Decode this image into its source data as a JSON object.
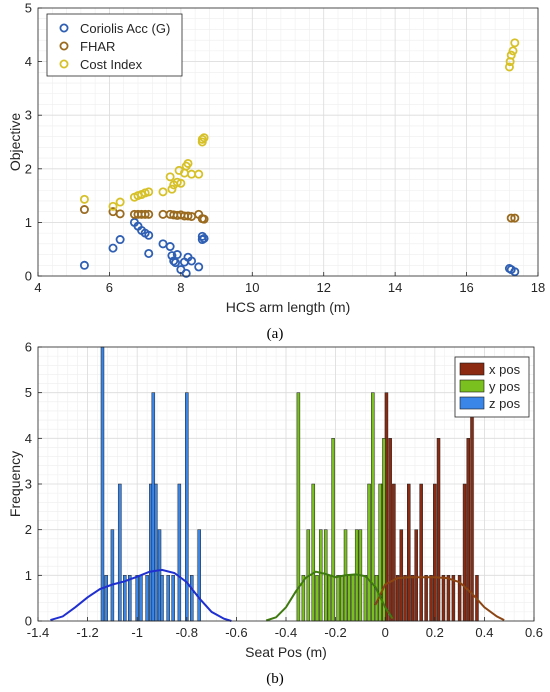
{
  "chart_data": [
    {
      "id": "a",
      "type": "scatter",
      "caption": "(a)",
      "xlabel": "HCS arm length (m)",
      "ylabel": "Objective",
      "xlim": [
        4,
        18
      ],
      "ylim": [
        0,
        5
      ],
      "xticks": [
        4,
        6,
        8,
        10,
        12,
        14,
        16,
        18
      ],
      "yticks": [
        0,
        1,
        2,
        3,
        4,
        5
      ],
      "grid": true,
      "legend_position": "top-left",
      "series": [
        {
          "name": "Coriolis Acc (G)",
          "color": "#2f5fb3",
          "points": [
            [
              5.3,
              0.2
            ],
            [
              6.1,
              0.52
            ],
            [
              6.3,
              0.68
            ],
            [
              6.7,
              1.0
            ],
            [
              6.8,
              0.93
            ],
            [
              6.9,
              0.85
            ],
            [
              7.0,
              0.8
            ],
            [
              7.1,
              0.76
            ],
            [
              7.1,
              0.42
            ],
            [
              7.5,
              0.6
            ],
            [
              7.7,
              0.55
            ],
            [
              7.75,
              0.38
            ],
            [
              7.8,
              0.28
            ],
            [
              7.85,
              0.25
            ],
            [
              7.9,
              0.4
            ],
            [
              8.0,
              0.12
            ],
            [
              8.1,
              0.26
            ],
            [
              8.15,
              0.05
            ],
            [
              8.2,
              0.35
            ],
            [
              8.3,
              0.28
            ],
            [
              8.5,
              0.17
            ],
            [
              8.6,
              0.68
            ],
            [
              8.6,
              0.74
            ],
            [
              8.65,
              0.7
            ],
            [
              17.2,
              0.14
            ],
            [
              17.25,
              0.12
            ],
            [
              17.35,
              0.08
            ]
          ]
        },
        {
          "name": "FHAR",
          "color": "#9a6a1f",
          "points": [
            [
              5.3,
              1.24
            ],
            [
              6.1,
              1.2
            ],
            [
              6.3,
              1.16
            ],
            [
              6.7,
              1.15
            ],
            [
              6.8,
              1.15
            ],
            [
              6.9,
              1.15
            ],
            [
              7.0,
              1.15
            ],
            [
              7.1,
              1.15
            ],
            [
              7.5,
              1.15
            ],
            [
              7.7,
              1.15
            ],
            [
              7.8,
              1.14
            ],
            [
              7.9,
              1.13
            ],
            [
              8.0,
              1.14
            ],
            [
              8.1,
              1.12
            ],
            [
              8.2,
              1.12
            ],
            [
              8.3,
              1.11
            ],
            [
              8.5,
              1.15
            ],
            [
              8.6,
              1.07
            ],
            [
              8.65,
              1.06
            ],
            [
              17.25,
              1.08
            ],
            [
              17.35,
              1.08
            ]
          ]
        },
        {
          "name": "Cost Index",
          "color": "#d7c129",
          "points": [
            [
              5.3,
              1.43
            ],
            [
              6.1,
              1.3
            ],
            [
              6.3,
              1.38
            ],
            [
              6.7,
              1.47
            ],
            [
              6.8,
              1.5
            ],
            [
              6.9,
              1.52
            ],
            [
              7.0,
              1.55
            ],
            [
              7.1,
              1.57
            ],
            [
              7.5,
              1.57
            ],
            [
              7.7,
              1.85
            ],
            [
              7.75,
              1.62
            ],
            [
              7.8,
              1.7
            ],
            [
              7.9,
              1.75
            ],
            [
              7.95,
              1.97
            ],
            [
              8.0,
              1.73
            ],
            [
              8.1,
              1.92
            ],
            [
              8.15,
              2.05
            ],
            [
              8.2,
              2.1
            ],
            [
              8.3,
              1.9
            ],
            [
              8.5,
              1.9
            ],
            [
              8.6,
              2.5
            ],
            [
              8.6,
              2.55
            ],
            [
              8.65,
              2.58
            ],
            [
              17.2,
              3.9
            ],
            [
              17.22,
              4.0
            ],
            [
              17.25,
              4.12
            ],
            [
              17.3,
              4.2
            ],
            [
              17.35,
              4.35
            ]
          ]
        }
      ]
    },
    {
      "id": "b",
      "type": "bar",
      "subtype": "histogram",
      "caption": "(b)",
      "xlabel": "Seat Pos (m)",
      "ylabel": "Frequency",
      "xlim": [
        -1.4,
        0.6
      ],
      "ylim": [
        0,
        6
      ],
      "xticks": [
        -1.4,
        -1.2,
        -1,
        -0.8,
        -0.6,
        -0.4,
        -0.2,
        0,
        0.2,
        0.4,
        0.6
      ],
      "yticks": [
        0,
        1,
        2,
        3,
        4,
        5,
        6
      ],
      "grid": true,
      "legend_position": "top-right",
      "bin_width": 0.012,
      "series": [
        {
          "name": "x pos",
          "color": "#8b2a10",
          "curve_color": "#8b4513",
          "bins": [
            [
              -0.01,
              3
            ],
            [
              0.005,
              5
            ],
            [
              0.02,
              4
            ],
            [
              0.035,
              3
            ],
            [
              0.05,
              1
            ],
            [
              0.065,
              2
            ],
            [
              0.08,
              1
            ],
            [
              0.095,
              3
            ],
            [
              0.11,
              1
            ],
            [
              0.125,
              2
            ],
            [
              0.145,
              3
            ],
            [
              0.165,
              1
            ],
            [
              0.185,
              1
            ],
            [
              0.2,
              3
            ],
            [
              0.215,
              4
            ],
            [
              0.235,
              1
            ],
            [
              0.255,
              1
            ],
            [
              0.275,
              1
            ],
            [
              0.3,
              1
            ],
            [
              0.32,
              3
            ],
            [
              0.335,
              4
            ],
            [
              0.35,
              5
            ],
            [
              0.37,
              1
            ]
          ],
          "kde": [
            [
              -0.04,
              0.35
            ],
            [
              0.0,
              0.8
            ],
            [
              0.05,
              0.94
            ],
            [
              0.1,
              0.96
            ],
            [
              0.15,
              0.96
            ],
            [
              0.2,
              0.96
            ],
            [
              0.25,
              0.94
            ],
            [
              0.3,
              0.85
            ],
            [
              0.35,
              0.6
            ],
            [
              0.4,
              0.3
            ],
            [
              0.45,
              0.1
            ],
            [
              0.48,
              0.02
            ]
          ]
        },
        {
          "name": "y pos",
          "color": "#7ac01e",
          "curve_color": "#3f7a10",
          "bins": [
            [
              -0.35,
              5
            ],
            [
              -0.33,
              1
            ],
            [
              -0.31,
              2
            ],
            [
              -0.29,
              3
            ],
            [
              -0.275,
              1
            ],
            [
              -0.26,
              2
            ],
            [
              -0.24,
              2
            ],
            [
              -0.225,
              1
            ],
            [
              -0.21,
              4
            ],
            [
              -0.19,
              1
            ],
            [
              -0.175,
              1
            ],
            [
              -0.16,
              2
            ],
            [
              -0.145,
              1
            ],
            [
              -0.13,
              1
            ],
            [
              -0.115,
              2
            ],
            [
              -0.1,
              2
            ],
            [
              -0.08,
              1
            ],
            [
              -0.065,
              3
            ],
            [
              -0.05,
              5
            ],
            [
              -0.035,
              1
            ],
            [
              -0.02,
              3
            ],
            [
              -0.005,
              4
            ]
          ],
          "kde": [
            [
              -0.48,
              0.01
            ],
            [
              -0.44,
              0.08
            ],
            [
              -0.4,
              0.3
            ],
            [
              -0.36,
              0.65
            ],
            [
              -0.32,
              0.95
            ],
            [
              -0.28,
              1.08
            ],
            [
              -0.24,
              1.03
            ],
            [
              -0.2,
              0.96
            ],
            [
              -0.16,
              1.0
            ],
            [
              -0.12,
              1.02
            ],
            [
              -0.08,
              0.98
            ],
            [
              -0.04,
              0.75
            ],
            [
              0.0,
              0.3
            ],
            [
              0.03,
              0.05
            ]
          ]
        },
        {
          "name": "z pos",
          "color": "#3a86e8",
          "curve_color": "#1f2fd0",
          "bins": [
            [
              -1.14,
              6
            ],
            [
              -1.125,
              1
            ],
            [
              -1.1,
              2
            ],
            [
              -1.07,
              3
            ],
            [
              -1.05,
              1
            ],
            [
              -1.03,
              1
            ],
            [
              -1.0,
              1
            ],
            [
              -0.985,
              1
            ],
            [
              -0.96,
              1
            ],
            [
              -0.945,
              3
            ],
            [
              -0.935,
              5
            ],
            [
              -0.925,
              3
            ],
            [
              -0.91,
              2
            ],
            [
              -0.9,
              1
            ],
            [
              -0.875,
              1
            ],
            [
              -0.855,
              1
            ],
            [
              -0.83,
              3
            ],
            [
              -0.8,
              5
            ],
            [
              -0.78,
              1
            ],
            [
              -0.75,
              2
            ]
          ],
          "kde": [
            [
              -1.35,
              0.02
            ],
            [
              -1.3,
              0.1
            ],
            [
              -1.25,
              0.3
            ],
            [
              -1.2,
              0.52
            ],
            [
              -1.15,
              0.7
            ],
            [
              -1.1,
              0.8
            ],
            [
              -1.05,
              0.87
            ],
            [
              -1.0,
              0.97
            ],
            [
              -0.95,
              1.08
            ],
            [
              -0.9,
              1.12
            ],
            [
              -0.85,
              1.05
            ],
            [
              -0.8,
              0.85
            ],
            [
              -0.75,
              0.5
            ],
            [
              -0.7,
              0.2
            ],
            [
              -0.65,
              0.05
            ],
            [
              -0.62,
              0.0
            ]
          ]
        }
      ]
    }
  ]
}
